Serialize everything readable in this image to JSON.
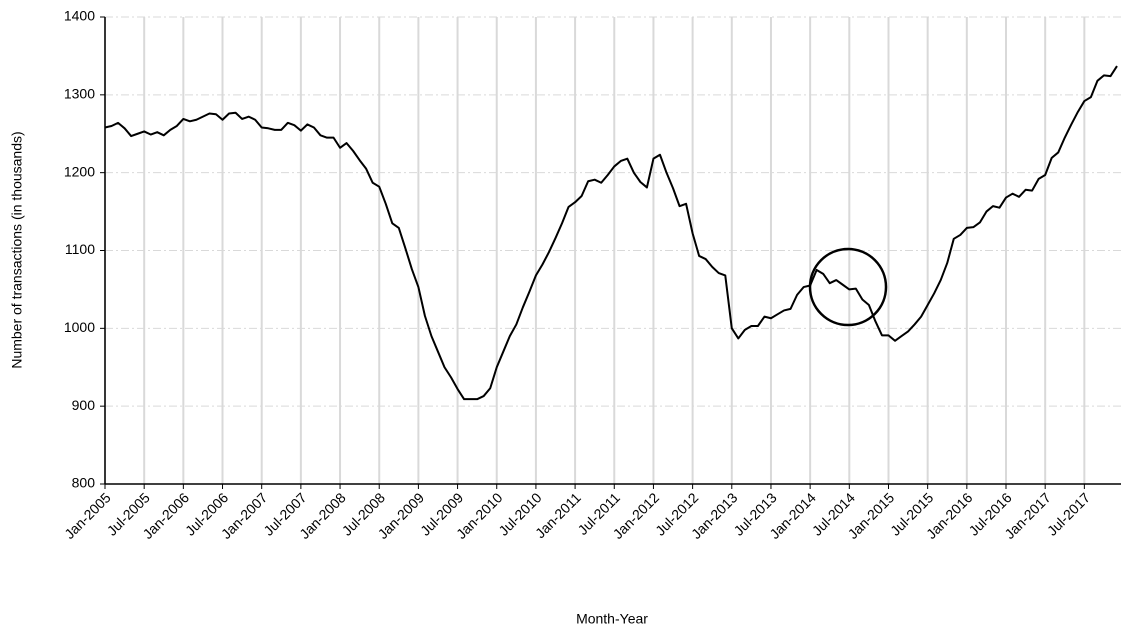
{
  "chart_data": {
    "type": "line",
    "x_label": "Month-Year",
    "y_label": "Number of transactions (in thousands)",
    "color": "#000000",
    "grid": true,
    "categories": [
      "Jan-2005",
      null,
      null,
      null,
      null,
      null,
      "Jul-2005",
      null,
      null,
      null,
      null,
      null,
      "Jan-2006",
      null,
      null,
      null,
      null,
      null,
      "Jul-2006",
      null,
      null,
      null,
      null,
      null,
      "Jan-2007",
      null,
      null,
      null,
      null,
      null,
      "Jul-2007",
      null,
      null,
      null,
      null,
      null,
      "Jan-2008",
      null,
      null,
      null,
      null,
      null,
      "Jul-2008",
      null,
      null,
      null,
      null,
      null,
      "Jan-2009",
      null,
      null,
      null,
      null,
      null,
      "Jul-2009",
      null,
      null,
      null,
      null,
      null,
      "Jan-2010",
      null,
      null,
      null,
      null,
      null,
      "Jul-2010",
      null,
      null,
      null,
      null,
      null,
      "Jan-2011",
      null,
      null,
      null,
      null,
      null,
      "Jul-2011",
      null,
      null,
      null,
      null,
      null,
      "Jan-2012",
      null,
      null,
      null,
      null,
      null,
      "Jul-2012",
      null,
      null,
      null,
      null,
      null,
      "Jan-2013",
      null,
      null,
      null,
      null,
      null,
      "Jul-2013",
      null,
      null,
      null,
      null,
      null,
      "Jan-2014",
      null,
      null,
      null,
      null,
      null,
      "Jul-2014",
      null,
      null,
      null,
      null,
      null,
      "Jan-2015",
      null,
      null,
      null,
      null,
      null,
      "Jul-2015",
      null,
      null,
      null,
      null,
      null,
      "Jan-2016",
      null,
      null,
      null,
      null,
      null,
      "Jul-2016",
      null,
      null,
      null,
      null,
      null,
      "Jan-2017",
      null,
      null,
      null,
      null,
      null,
      "Jul-2017",
      null,
      null,
      null,
      null,
      null
    ],
    "values": [
      1258,
      1260,
      1264,
      1257,
      1247,
      1250,
      1253,
      1249,
      1252,
      1248,
      1255,
      1260,
      1269,
      1266,
      1268,
      1272,
      1276,
      1275,
      1268,
      1276,
      1277,
      1269,
      1272,
      1268,
      1258,
      1257,
      1255,
      1255,
      1264,
      1261,
      1254,
      1262,
      1258,
      1248,
      1245,
      1245,
      1232,
      1238,
      1228,
      1216,
      1205,
      1187,
      1182,
      1160,
      1135,
      1129,
      1103,
      1076,
      1053,
      1016,
      990,
      970,
      950,
      937,
      922,
      909,
      909,
      909,
      913,
      923,
      950,
      970,
      990,
      1005,
      1027,
      1047,
      1068,
      1082,
      1098,
      1116,
      1135,
      1156,
      1162,
      1170,
      1189,
      1191,
      1187,
      1197,
      1208,
      1215,
      1218,
      1200,
      1188,
      1181,
      1218,
      1223,
      1200,
      1180,
      1157,
      1160,
      1122,
      1093,
      1089,
      1079,
      1071,
      1068,
      1000,
      987,
      998,
      1003,
      1003,
      1015,
      1013,
      1018,
      1023,
      1025,
      1043,
      1053,
      1055,
      1075,
      1070,
      1058,
      1062,
      1056,
      1050,
      1051,
      1037,
      1030,
      1009,
      991,
      991,
      984,
      990,
      996,
      1005,
      1015,
      1030,
      1045,
      1062,
      1084,
      1115,
      1120,
      1129,
      1130,
      1136,
      1150,
      1157,
      1155,
      1168,
      1173,
      1169,
      1178,
      1177,
      1192,
      1197,
      1219,
      1226,
      1245,
      1262,
      1278,
      1292,
      1297,
      1318,
      1325,
      1324,
      1337
    ],
    "ylim": [
      800,
      1400
    ],
    "yticks": [
      800,
      900,
      1000,
      1100,
      1200,
      1300,
      1400
    ]
  }
}
